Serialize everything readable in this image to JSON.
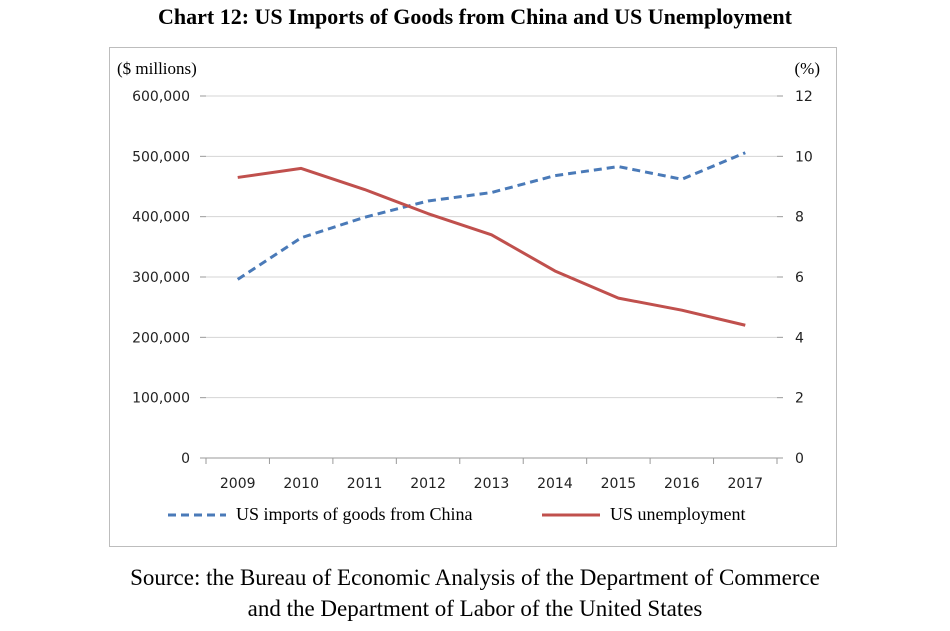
{
  "title": "Chart 12: US Imports of Goods from China and US Unemployment",
  "source_line1": "Source: the Bureau of Economic Analysis of the Department of Commerce",
  "source_line2": "and the Department of Labor of the United States",
  "chart_data": {
    "type": "line",
    "x": [
      "2009",
      "2010",
      "2011",
      "2012",
      "2013",
      "2014",
      "2015",
      "2016",
      "2017"
    ],
    "left_unit": "($ millions)",
    "right_unit": "(%)",
    "left_ticks": [
      "0",
      "100,000",
      "200,000",
      "300,000",
      "400,000",
      "500,000",
      "600,000"
    ],
    "right_ticks": [
      "0",
      "2",
      "4",
      "6",
      "8",
      "10",
      "12"
    ],
    "ylim_left": [
      0,
      600000
    ],
    "ylim_right": [
      0,
      12
    ],
    "grid": true,
    "legend_position": "bottom",
    "series": [
      {
        "name": "US imports of goods from China",
        "axis": "left",
        "style": "dashed",
        "color": "#4a7ab8",
        "values": [
          296000,
          365000,
          399000,
          426000,
          440000,
          468000,
          483000,
          462000,
          506000
        ]
      },
      {
        "name": "US unemployment",
        "axis": "right",
        "style": "solid",
        "color": "#c0504d",
        "values": [
          9.3,
          9.6,
          8.9,
          8.1,
          7.4,
          6.2,
          5.3,
          4.9,
          4.4
        ]
      }
    ]
  }
}
